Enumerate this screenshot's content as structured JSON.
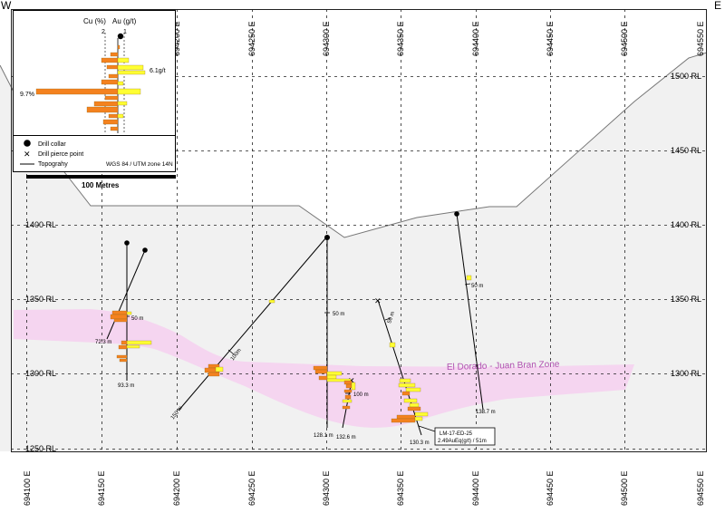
{
  "orientation": {
    "west": "W",
    "east": "E"
  },
  "eastings": [
    "694100 E",
    "694150 E",
    "694200 E",
    "694250 E",
    "694300 E",
    "694350 E",
    "694400 E",
    "694450 E",
    "694500 E",
    "694550 E"
  ],
  "elevations": [
    "1500 RL",
    "1450 RL",
    "1400 RL",
    "1350 RL",
    "1300 RL",
    "1250 RL"
  ],
  "legend": {
    "cu_header": "Cu (%)",
    "au_header": "Au (g/t)",
    "cu_scale": "2",
    "au_scale": "1",
    "cu_peak": "9.7%",
    "au_peak": "6.1g/t",
    "drill_collar": "Drill collar",
    "drill_pierce_point": "Drill pierce point",
    "topography": "Topograhy",
    "projection": "WGS 84 / UTM zone 14N"
  },
  "scale_bar": "100 Metres",
  "zone_label": "El Dorado - Juan Bran Zone",
  "hole_labels": {
    "h1_end": "72.3 m",
    "h2_end": "93.3 m",
    "h2_tick": "50 m",
    "h3_end": "150 m",
    "h3_tick": "100m",
    "h4_end": "128.1 m",
    "h4_tick": "50 m",
    "h5_end": "132.6 m",
    "h5_tick": "100 m",
    "h6_end": "130.3 m",
    "h6_tick": "50 m",
    "h7_end": "138.7 m",
    "h7_tick": "50 m"
  },
  "callout": {
    "line1": "LM-17-ED-25",
    "line2": "2.49AuEq(g/t) / 51m"
  },
  "colors": {
    "cu": "#f4821f",
    "au": "#ffff33",
    "zone": "#f5d5f0",
    "terrain": "#f1f1f1",
    "topo_line": "#777777",
    "grid": "#222222"
  }
}
